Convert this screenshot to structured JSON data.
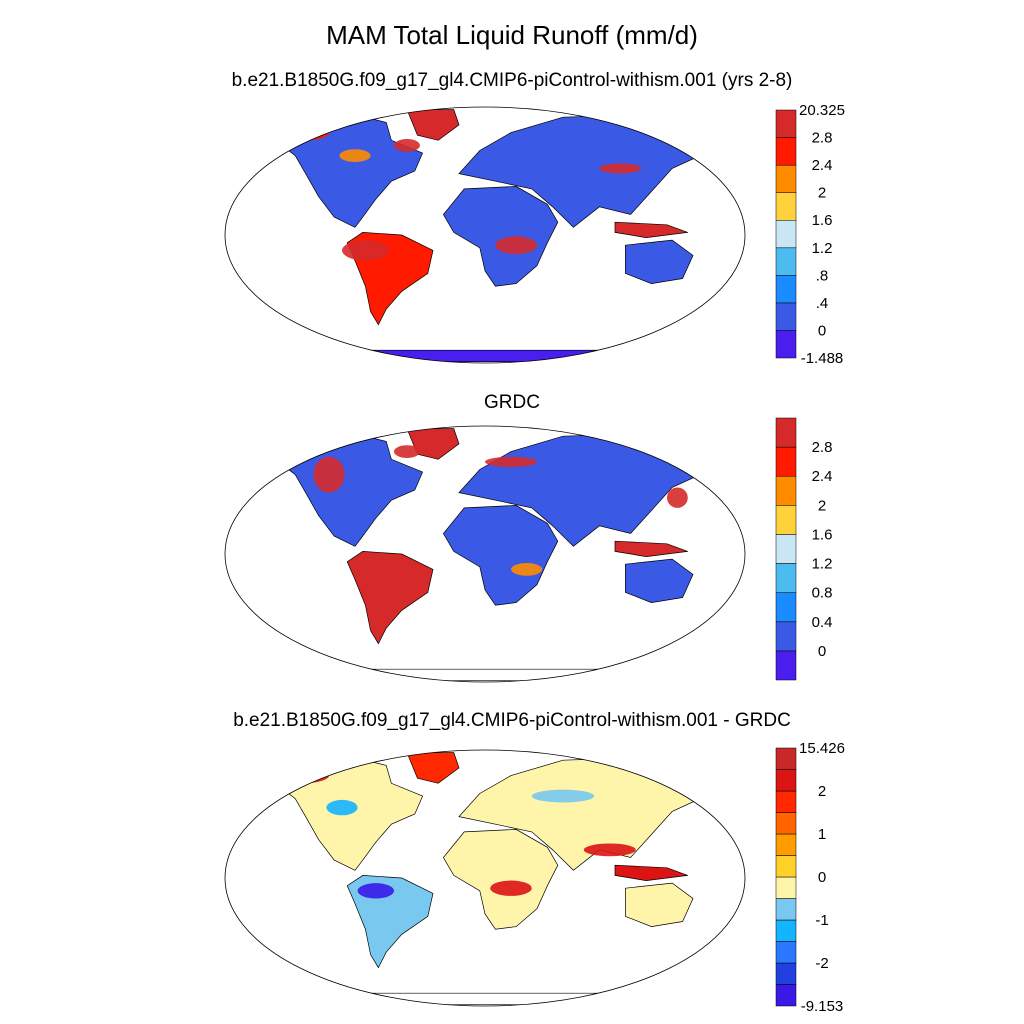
{
  "title": "MAM Total Liquid Runoff (mm/d)",
  "panels": [
    {
      "id": "model",
      "subtitle": "b.e21.B1850G.f09_g17_gl4.CMIP6-piControl-withism.001 (yrs 2-8)",
      "colorbar": {
        "colors": [
          "#4b1ef0",
          "#3a5ae6",
          "#1a8cff",
          "#4cbcf0",
          "#c8e6f4",
          "#ffd23c",
          "#ff8c00",
          "#ff1a00",
          "#d62a2a"
        ],
        "labels": [
          "20.325",
          "2.8",
          "2.4",
          "2",
          "1.6",
          "1.2",
          ".8",
          ".4",
          "0",
          "-1.488"
        ]
      }
    },
    {
      "id": "obs",
      "subtitle": "GRDC",
      "colorbar": {
        "colors": [
          "#4b1ef0",
          "#3a5ae6",
          "#1a8cff",
          "#4cbcf0",
          "#c8e6f4",
          "#ffd23c",
          "#ff8c00",
          "#ff1a00",
          "#d62a2a"
        ],
        "labels": [
          "",
          "2.8",
          "2.4",
          "2",
          "1.6",
          "1.2",
          "0.8",
          "0.4",
          "0",
          ""
        ]
      }
    },
    {
      "id": "diff",
      "subtitle": "b.e21.B1850G.f09_g17_gl4.CMIP6-piControl-withism.001 - GRDC",
      "colorbar": {
        "colors": [
          "#3a18e8",
          "#2040e0",
          "#2a78ff",
          "#14b4ff",
          "#78c8f0",
          "#fff5aa",
          "#ffd028",
          "#ff9c00",
          "#ff6400",
          "#ff2800",
          "#dc1414",
          "#c82828"
        ],
        "labels": [
          "15.426",
          "",
          "2",
          "",
          "1",
          "",
          "0",
          "",
          "-1",
          "",
          "-2",
          "",
          "-9.153"
        ]
      }
    }
  ]
}
